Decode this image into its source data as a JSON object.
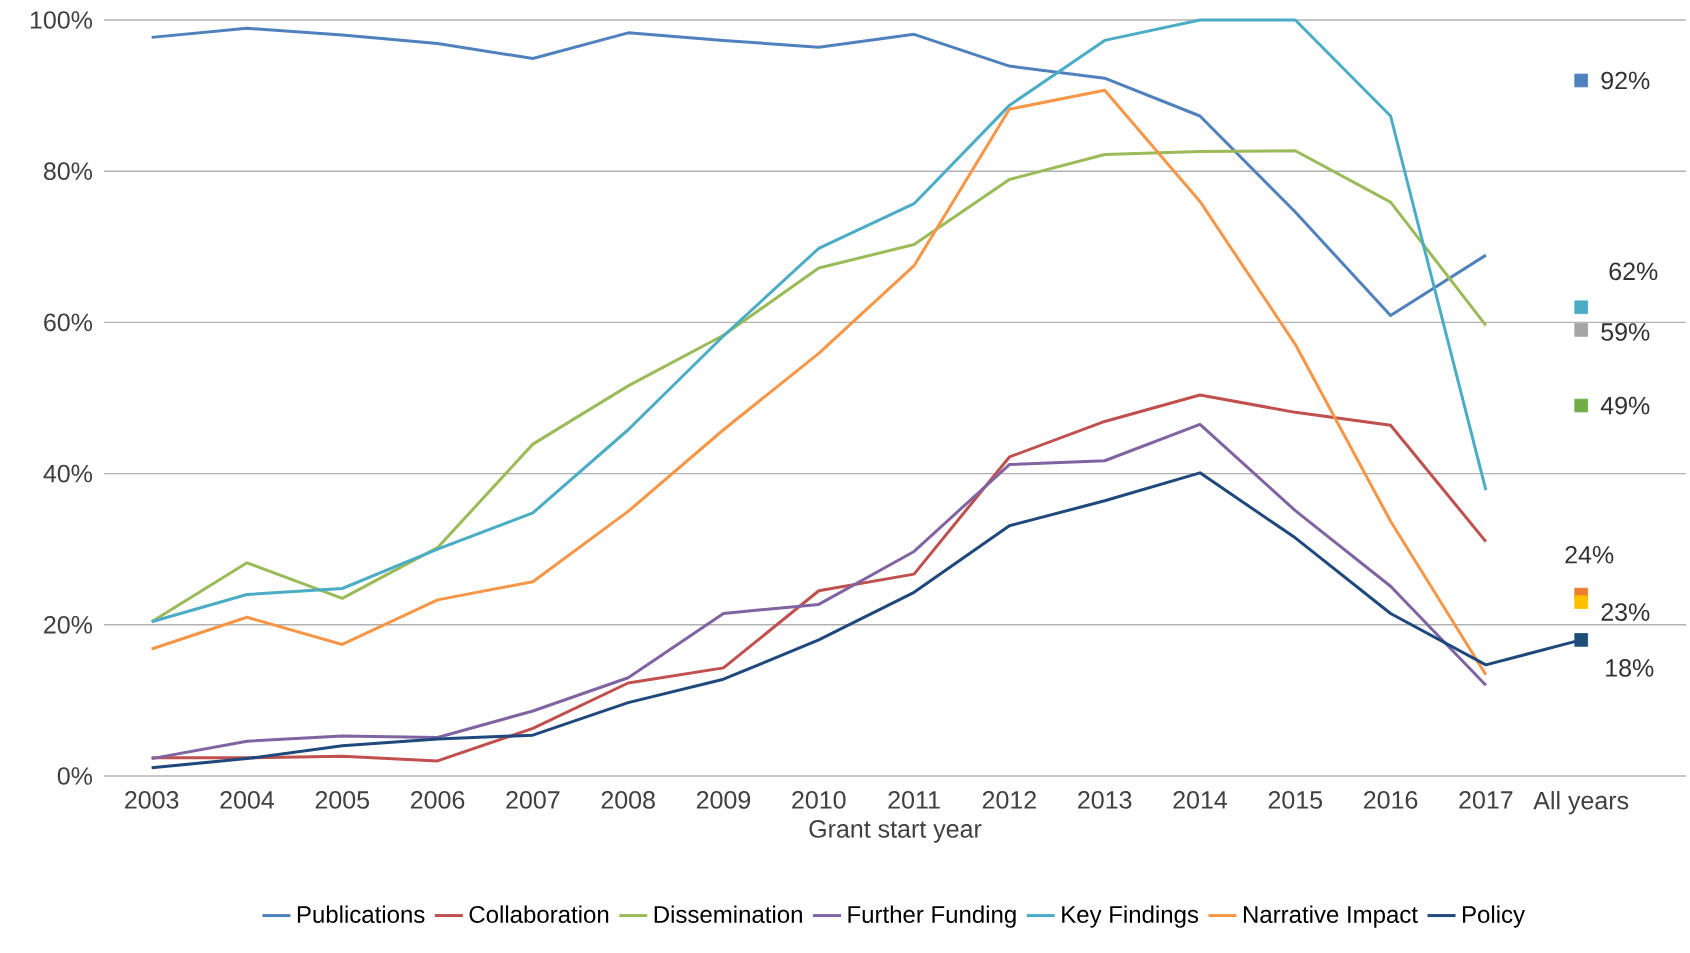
{
  "chart_data": {
    "type": "line",
    "xlabel": "Grant start year",
    "categories": [
      "2003",
      "2004",
      "2005",
      "2006",
      "2007",
      "2008",
      "2009",
      "2010",
      "2011",
      "2012",
      "2013",
      "2014",
      "2015",
      "2016",
      "2017",
      "All years"
    ],
    "ylim": [
      0,
      100
    ],
    "yticks": [
      {
        "value": 0,
        "label": "0%"
      },
      {
        "value": 20,
        "label": "20%"
      },
      {
        "value": 40,
        "label": "40%"
      },
      {
        "value": 60,
        "label": "60%"
      },
      {
        "value": 80,
        "label": "80%"
      },
      {
        "value": 100,
        "label": "100%"
      }
    ],
    "grid": "y",
    "legend": "bottom",
    "marker": "none",
    "line_style": "solid",
    "series": [
      {
        "name": "Publications",
        "color": "#4f81bd",
        "values": [
          97.7,
          98.9,
          98,
          96.9,
          94.9,
          98.3,
          97.3,
          96.4,
          98.1,
          93.9,
          92.3,
          87.3,
          74.6,
          60.9,
          68.9,
          null
        ]
      },
      {
        "name": "Collaboration",
        "color": "#c0504d",
        "values": [
          2.4,
          2.4,
          2.6,
          2,
          6.3,
          12.3,
          14.3,
          24.5,
          26.7,
          42.2,
          46.9,
          50.4,
          48.1,
          46.4,
          31,
          null
        ]
      },
      {
        "name": "Dissemination",
        "color": "#9bbb59",
        "values": [
          20.4,
          28.2,
          23.5,
          30.2,
          43.9,
          51.6,
          58.3,
          67.2,
          70.3,
          78.9,
          82.2,
          82.6,
          82.7,
          75.9,
          59.6,
          null
        ]
      },
      {
        "name": "Further Funding",
        "color": "#8064a2",
        "values": [
          2.3,
          4.6,
          5.3,
          5.1,
          8.6,
          13,
          21.5,
          22.7,
          29.7,
          41.2,
          41.7,
          46.5,
          35.1,
          25.1,
          12,
          null
        ]
      },
      {
        "name": "Key Findings",
        "color": "#4bacc6",
        "values": [
          20.4,
          24,
          24.8,
          30,
          34.8,
          45.8,
          58.2,
          69.8,
          75.7,
          88.7,
          97.3,
          100,
          100,
          87.3,
          37.8,
          null
        ]
      },
      {
        "name": "Narrative Impact",
        "color": "#f79646",
        "values": [
          16.8,
          21,
          17.4,
          23.3,
          25.7,
          35,
          45.8,
          55.9,
          67.5,
          88.2,
          90.7,
          76,
          57.1,
          33.7,
          13.4,
          null
        ]
      },
      {
        "name": "Policy",
        "color": "#1f497d",
        "values": [
          1.1,
          2.3,
          4,
          4.9,
          5.4,
          9.7,
          12.8,
          18,
          24.3,
          33.1,
          36.4,
          40.1,
          31.5,
          21.5,
          14.7,
          18
        ]
      },
      {
        "type": "scatter",
        "marker": "square",
        "x": [
          "All years",
          "All years",
          "All years",
          "All years",
          "All years",
          "All years",
          "All years"
        ],
        "values": [
          92,
          62,
          59,
          49,
          24,
          23,
          18
        ],
        "colors": [
          "#4f81bd",
          "#4bacc6",
          "#a5a5a5",
          "#70ad47",
          "#ed7d31",
          "#ffc000",
          "#1f4e79"
        ],
        "value_labels": [
          "92%",
          "62%",
          "59%",
          "49%",
          "24%",
          "23%",
          "18%"
        ]
      }
    ]
  }
}
